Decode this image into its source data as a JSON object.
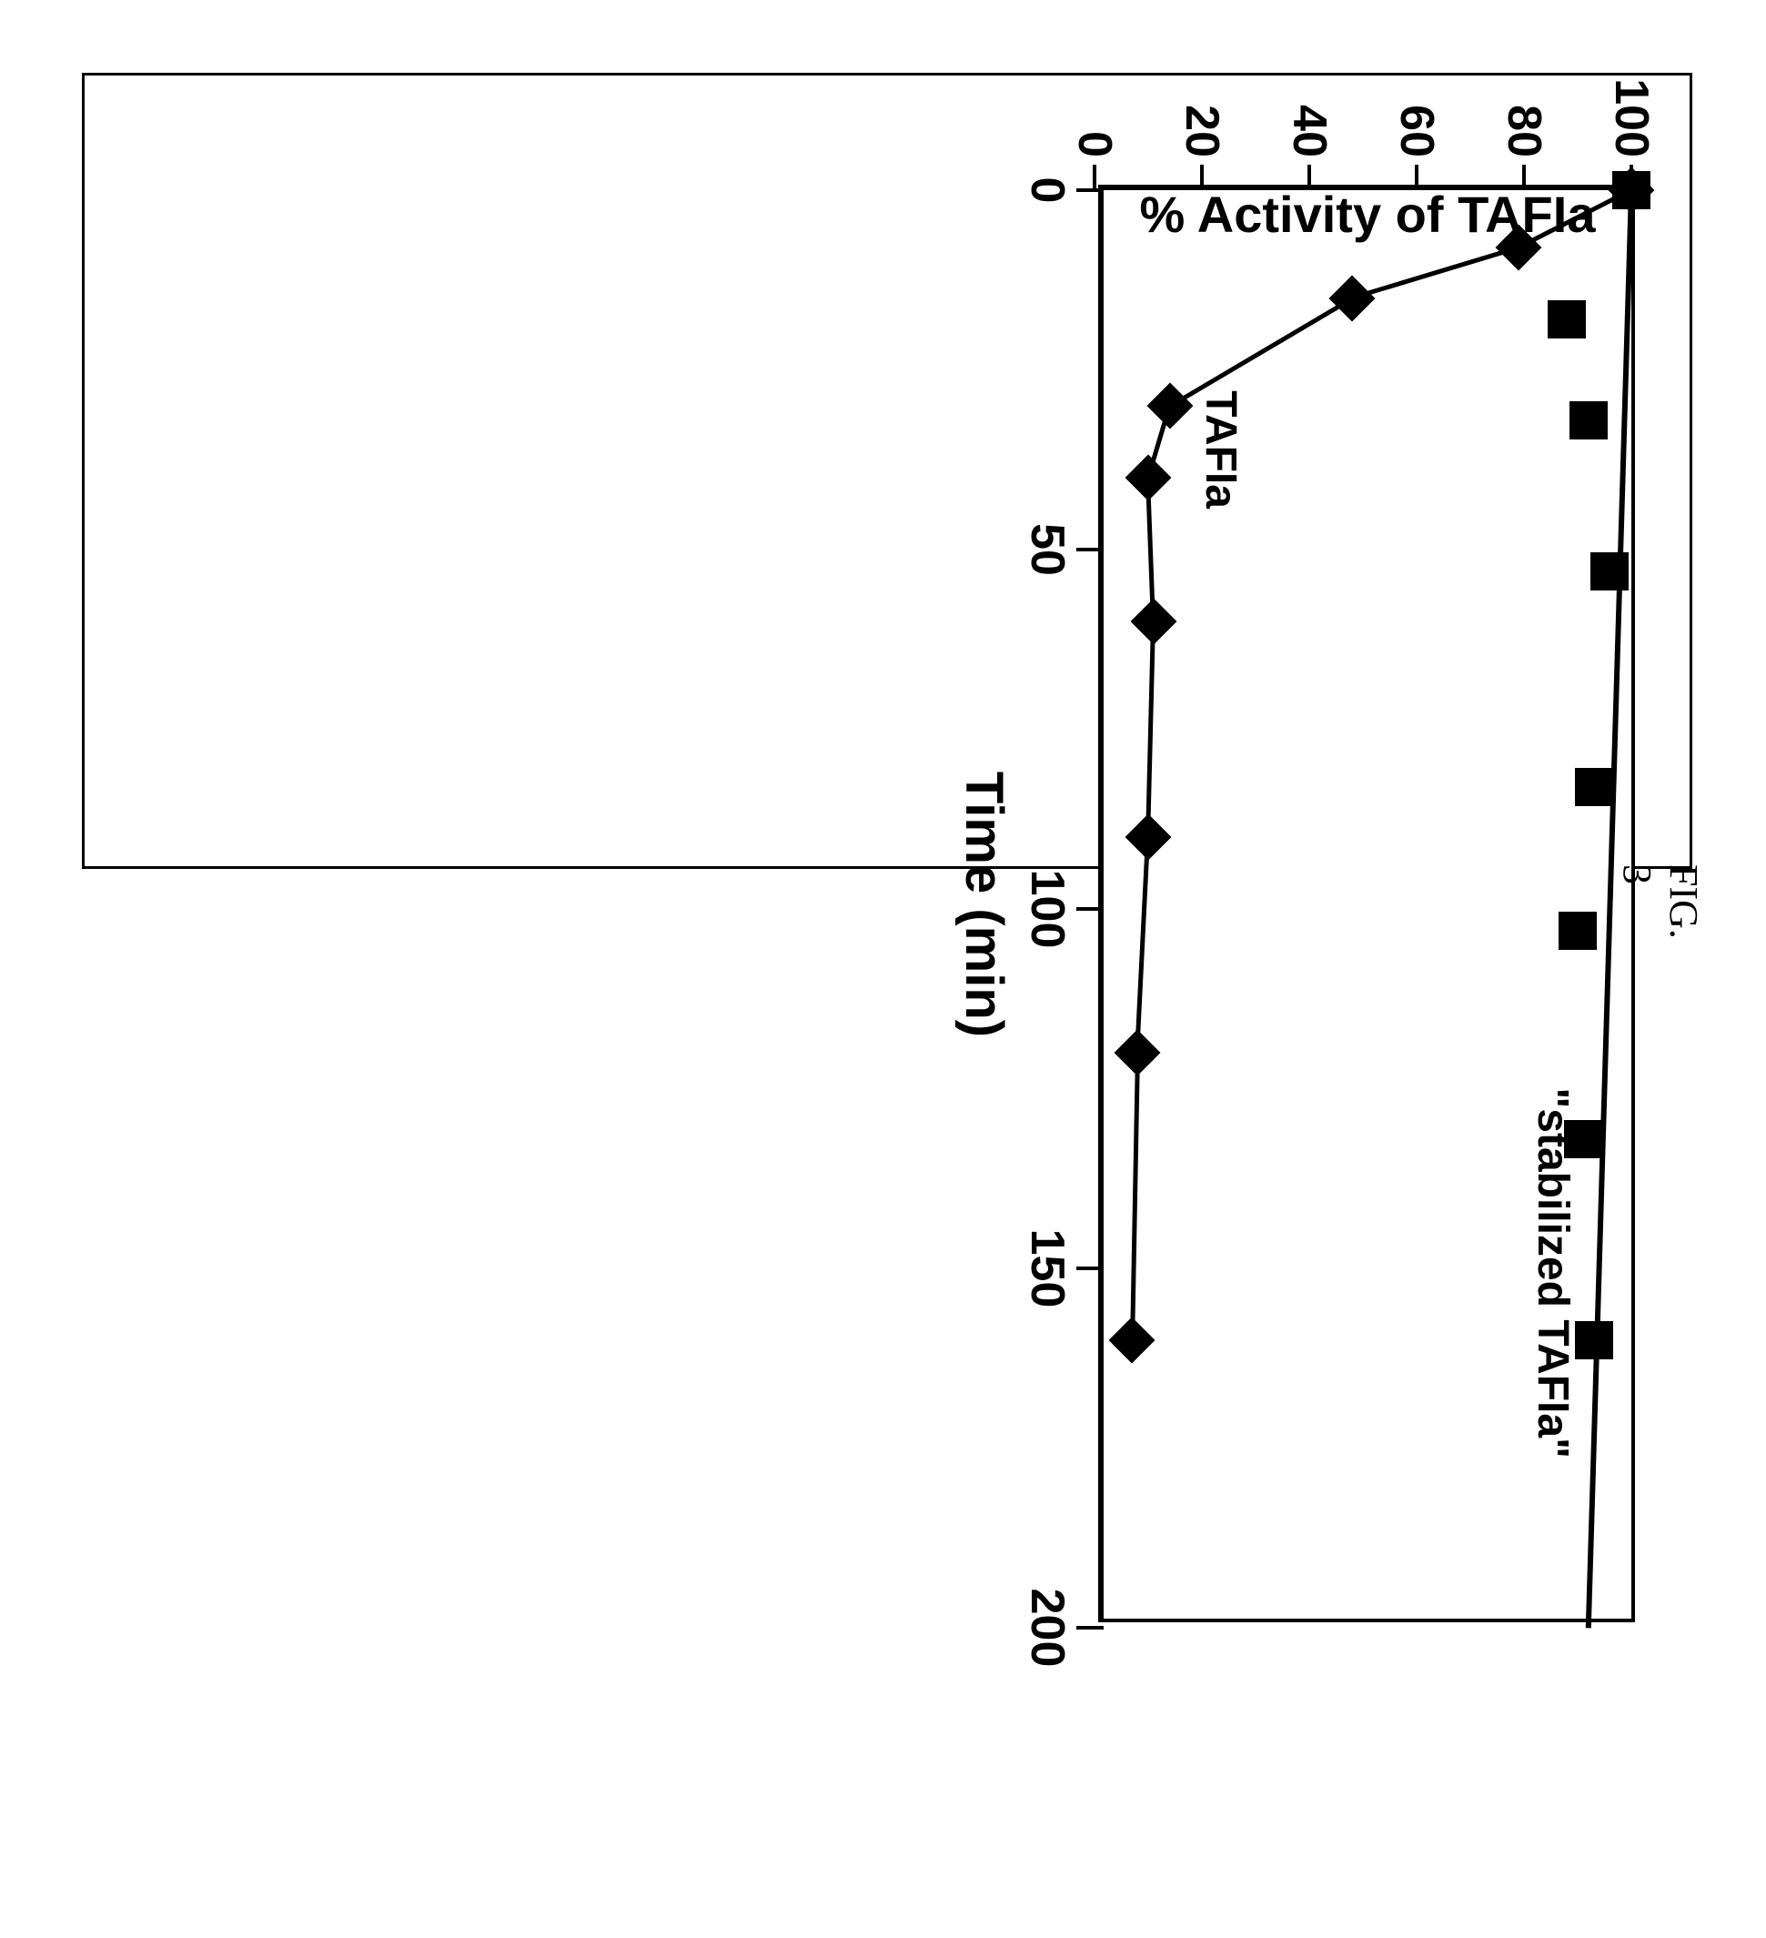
{
  "figure_caption": "FIG. 3",
  "chart": {
    "type": "line-scatter",
    "background_color": "#ffffff",
    "border_color": "#000000",
    "x_axis": {
      "title": "Time (min)",
      "title_fontsize": 58,
      "min": 0,
      "max": 200,
      "ticks": [
        0,
        50,
        100,
        150,
        200
      ],
      "tick_fontsize": 52,
      "tick_font_weight": "bold"
    },
    "y_axis": {
      "title": "%  Activity of TAFIa",
      "title_fontsize": 56,
      "min": 0,
      "max": 100,
      "ticks": [
        0,
        20,
        40,
        60,
        80,
        100
      ],
      "tick_fontsize": 52,
      "tick_font_weight": "bold"
    },
    "series": [
      {
        "name": "TAFIa",
        "label": "TAFIa",
        "label_x": 38,
        "label_y": 24,
        "marker": "diamond",
        "marker_size": 36,
        "marker_color": "#000000",
        "line_color": "#000000",
        "line_width": 5,
        "data": [
          {
            "x": 0,
            "y": 100
          },
          {
            "x": 8,
            "y": 79
          },
          {
            "x": 15,
            "y": 48
          },
          {
            "x": 30,
            "y": 14
          },
          {
            "x": 40,
            "y": 10
          },
          {
            "x": 60,
            "y": 11
          },
          {
            "x": 90,
            "y": 10
          },
          {
            "x": 120,
            "y": 8
          },
          {
            "x": 160,
            "y": 7
          }
        ]
      },
      {
        "name": "stabilized TAFIa",
        "label": "\"stabilized TAFIa\"",
        "label_x": 135,
        "label_y": 86,
        "marker": "square",
        "marker_size": 42,
        "marker_color": "#000000",
        "line_color": "#000000",
        "line_width": 6,
        "line_endpoints": [
          {
            "x": 0,
            "y": 100
          },
          {
            "x": 200,
            "y": 92
          }
        ],
        "data": [
          {
            "x": 0,
            "y": 100
          },
          {
            "x": 18,
            "y": 88
          },
          {
            "x": 32,
            "y": 92
          },
          {
            "x": 53,
            "y": 96
          },
          {
            "x": 83,
            "y": 93
          },
          {
            "x": 103,
            "y": 90
          },
          {
            "x": 132,
            "y": 91
          },
          {
            "x": 160,
            "y": 93
          }
        ]
      }
    ]
  }
}
